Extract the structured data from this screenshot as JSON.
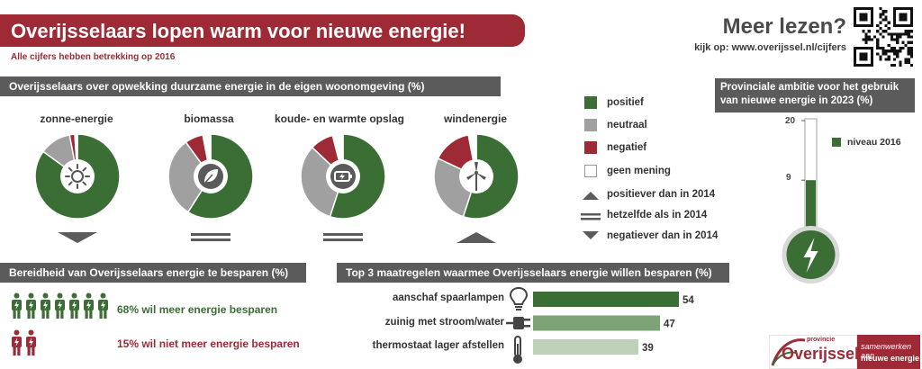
{
  "header": {
    "title": "Overijsselaars lopen warm voor nieuwe energie!",
    "subtitle": "Alle cijfers hebben betrekking op 2016",
    "more_title": "Meer lezen?",
    "more_link": "kijk op: www.overijssel.nl/cijfers"
  },
  "colors": {
    "positive": "#3a6e35",
    "neutral": "#a0a0a0",
    "negative": "#9e2a35",
    "no_opinion": "#ffffff",
    "banner": "#9e2a35",
    "section": "#5b5b5b"
  },
  "sections": {
    "generation": "Overijsselaars over opwekking duurzame energie in de eigen woonomgeving (%)",
    "willingness": "Bereidheid van Overijsselaars energie te besparen (%)",
    "measures": "Top 3 maatregelen waarmee Overijsselaars energie willen besparen (%)",
    "ambition": "Provinciale ambitie voor het gebruik van nieuwe energie in 2023 (%)"
  },
  "legend": {
    "positive": "positief",
    "neutral": "neutraal",
    "negative": "negatief",
    "no_opinion": "geen mening",
    "trend_up": "positiever dan in 2014",
    "trend_same": "hetzelfde als in 2014",
    "trend_down": "negatiever dan in 2014"
  },
  "chart_data": [
    {
      "type": "pie",
      "series": [
        {
          "name": "zonne-energie",
          "icon": "sun-icon",
          "trend": "down",
          "values": {
            "positief": 85,
            "neutraal": 12,
            "negatief": 2,
            "geen mening": 1
          }
        },
        {
          "name": "biomassa",
          "icon": "leaf-icon",
          "trend": "same",
          "values": {
            "positief": 59,
            "neutraal": 31,
            "negatief": 7,
            "geen mening": 3
          }
        },
        {
          "name": "koude- en warmte opslag",
          "icon": "battery-icon",
          "trend": "same",
          "values": {
            "positief": 55,
            "neutraal": 32,
            "negatief": 9,
            "geen mening": 4
          }
        },
        {
          "name": "windenergie",
          "icon": "wind-turbine-icon",
          "trend": "up",
          "values": {
            "positief": 55,
            "neutraal": 27,
            "negatief": 15,
            "geen mening": 3
          }
        }
      ],
      "categories": [
        "positief",
        "neutraal",
        "negatief",
        "geen mening"
      ]
    },
    {
      "type": "bar",
      "categories": [
        "aanschaf spaarlampen",
        "zuinig met stroom/water",
        "thermostaat lager afstellen"
      ],
      "icons": [
        "lightbulb-icon",
        "plug-icon",
        "thermometer-icon"
      ],
      "values": [
        54,
        47,
        39
      ],
      "bar_colors": [
        "#3a6e35",
        "#7ea376",
        "#bfd1b9"
      ],
      "xlim": [
        0,
        60
      ]
    },
    {
      "type": "bar",
      "title": "",
      "categories": [
        "niveau 2016"
      ],
      "values": [
        9
      ],
      "ticks": [
        "20",
        "9"
      ],
      "ylim": [
        0,
        20
      ]
    }
  ],
  "willingness": {
    "more": {
      "text": "68% wil meer energie besparen",
      "value": 68
    },
    "not_more": {
      "text": "15% wil niet meer energie besparen",
      "value": 15
    }
  },
  "thermometer": {
    "legend": "niveau 2016",
    "tick_top": "20",
    "tick_level": "9"
  },
  "logo": {
    "small": "provincie",
    "name": "Overijssel",
    "tagline_1": "samenwerken aan",
    "tagline_2": "nieuwe energie"
  }
}
